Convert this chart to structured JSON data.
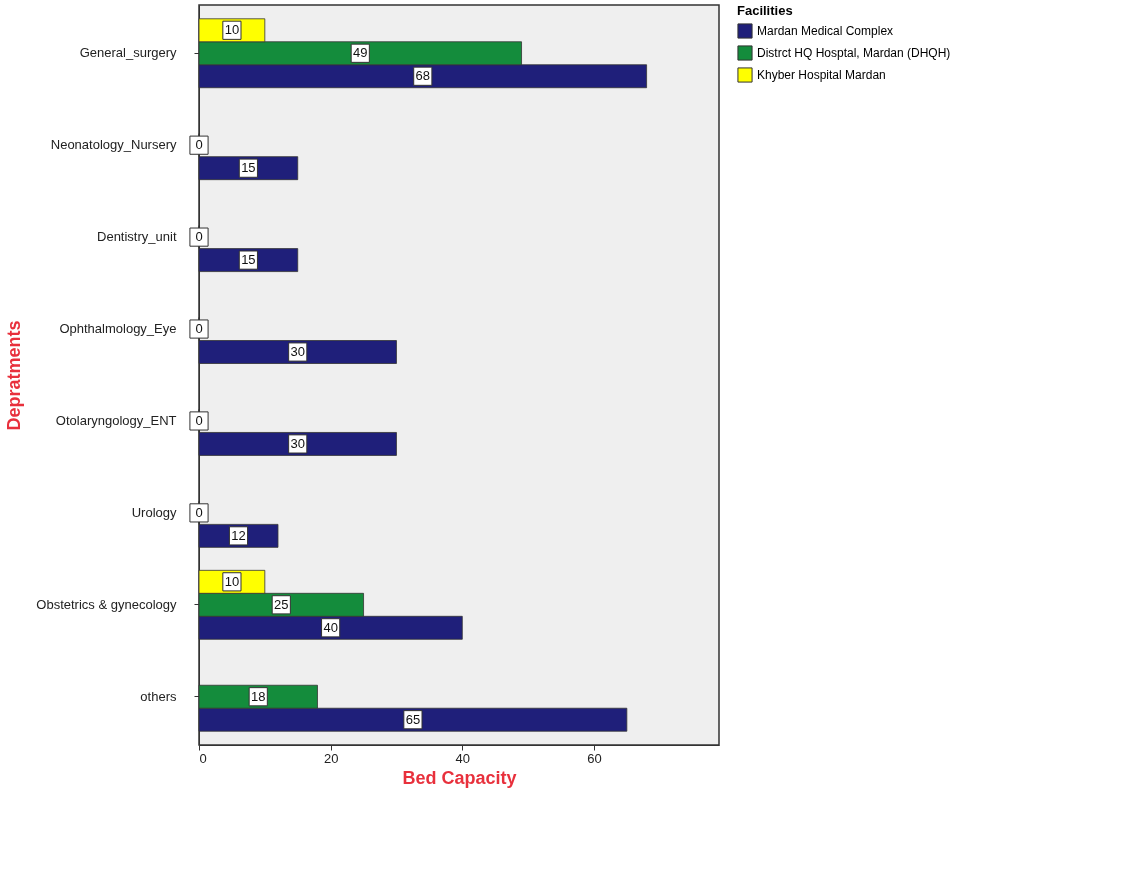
{
  "chart_data": {
    "type": "bar",
    "orientation": "horizontal",
    "xlabel": "Bed Capacity",
    "ylabel": "Depratments",
    "legend_title": "Facilities",
    "categories": [
      "General_surgery",
      "Neonatology_Nursery",
      "Dentistry_unit",
      "Ophthalmology_Eye",
      "Otolaryngology_ENT",
      "Urology",
      "Obstetrics & gynecology",
      "others"
    ],
    "series": [
      {
        "name": "Mardan Medical Complex",
        "color": "#1f1f7a",
        "values": [
          68,
          15,
          15,
          30,
          30,
          12,
          40,
          65
        ]
      },
      {
        "name": "Distrct HQ Hosptal, Mardan (DHQH)",
        "color": "#148c3c",
        "values": [
          49,
          0,
          0,
          0,
          0,
          0,
          25,
          18
        ]
      },
      {
        "name": "Khyber Hospital Mardan",
        "color": "#ffff00",
        "values": [
          10,
          null,
          null,
          null,
          null,
          null,
          10,
          null
        ]
      }
    ],
    "xlim": [
      0,
      79
    ],
    "xticks": [
      0,
      20,
      40,
      60
    ],
    "grid": false,
    "legend": "top right",
    "data_labels": true
  }
}
